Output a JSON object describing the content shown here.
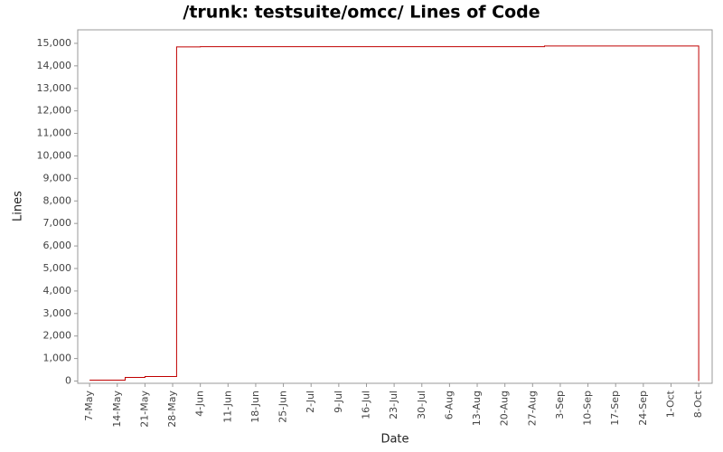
{
  "chart_data": {
    "type": "step",
    "title": "/trunk: testsuite/omcc/ Lines of Code",
    "x_label": "Date",
    "y_label": "Lines",
    "series": [
      {
        "name": "Lines",
        "color": "#c00000",
        "x": [
          0,
          9,
          14,
          22,
          28,
          115,
          154
        ],
        "values": [
          40,
          160,
          200,
          14840,
          14850,
          14880,
          0
        ]
      }
    ],
    "xlim": [
      -3,
      157.4
    ],
    "xticks": [
      {
        "value": 0,
        "label": "7-May"
      },
      {
        "value": 7,
        "label": "14-May"
      },
      {
        "value": 14,
        "label": "21-May"
      },
      {
        "value": 21,
        "label": "28-May"
      },
      {
        "value": 28,
        "label": "4-Jun"
      },
      {
        "value": 35,
        "label": "11-Jun"
      },
      {
        "value": 42,
        "label": "18-Jun"
      },
      {
        "value": 49,
        "label": "25-Jun"
      },
      {
        "value": 56,
        "label": "2-Jul"
      },
      {
        "value": 63,
        "label": "9-Jul"
      },
      {
        "value": 70,
        "label": "16-Jul"
      },
      {
        "value": 77,
        "label": "23-Jul"
      },
      {
        "value": 84,
        "label": "30-Jul"
      },
      {
        "value": 91,
        "label": "6-Aug"
      },
      {
        "value": 98,
        "label": "13-Aug"
      },
      {
        "value": 105,
        "label": "20-Aug"
      },
      {
        "value": 112,
        "label": "27-Aug"
      },
      {
        "value": 119,
        "label": "3-Sep"
      },
      {
        "value": 126,
        "label": "10-Sep"
      },
      {
        "value": 133,
        "label": "17-Sep"
      },
      {
        "value": 140,
        "label": "24-Sep"
      },
      {
        "value": 147,
        "label": "1-Oct"
      },
      {
        "value": 154,
        "label": "8-Oct"
      }
    ],
    "ylim": [
      -100,
      15600
    ],
    "yticks": [
      0,
      {
        "value": 1000,
        "label": "1,000"
      },
      {
        "value": 2000,
        "label": "2,000"
      },
      {
        "value": 3000,
        "label": "3,000"
      },
      {
        "value": 4000,
        "label": "4,000"
      },
      {
        "value": 5000,
        "label": "5,000"
      },
      {
        "value": 6000,
        "label": "6,000"
      },
      {
        "value": 7000,
        "label": "7,000"
      },
      {
        "value": 8000,
        "label": "8,000"
      },
      {
        "value": 9000,
        "label": "9,000"
      },
      {
        "value": 10000,
        "label": "10,000"
      },
      {
        "value": 11000,
        "label": "11,000"
      },
      {
        "value": 12000,
        "label": "12,000"
      },
      {
        "value": 13000,
        "label": "13,000"
      },
      {
        "value": 14000,
        "label": "14,000"
      },
      {
        "value": 15000,
        "label": "15,000"
      }
    ],
    "grid": false
  }
}
